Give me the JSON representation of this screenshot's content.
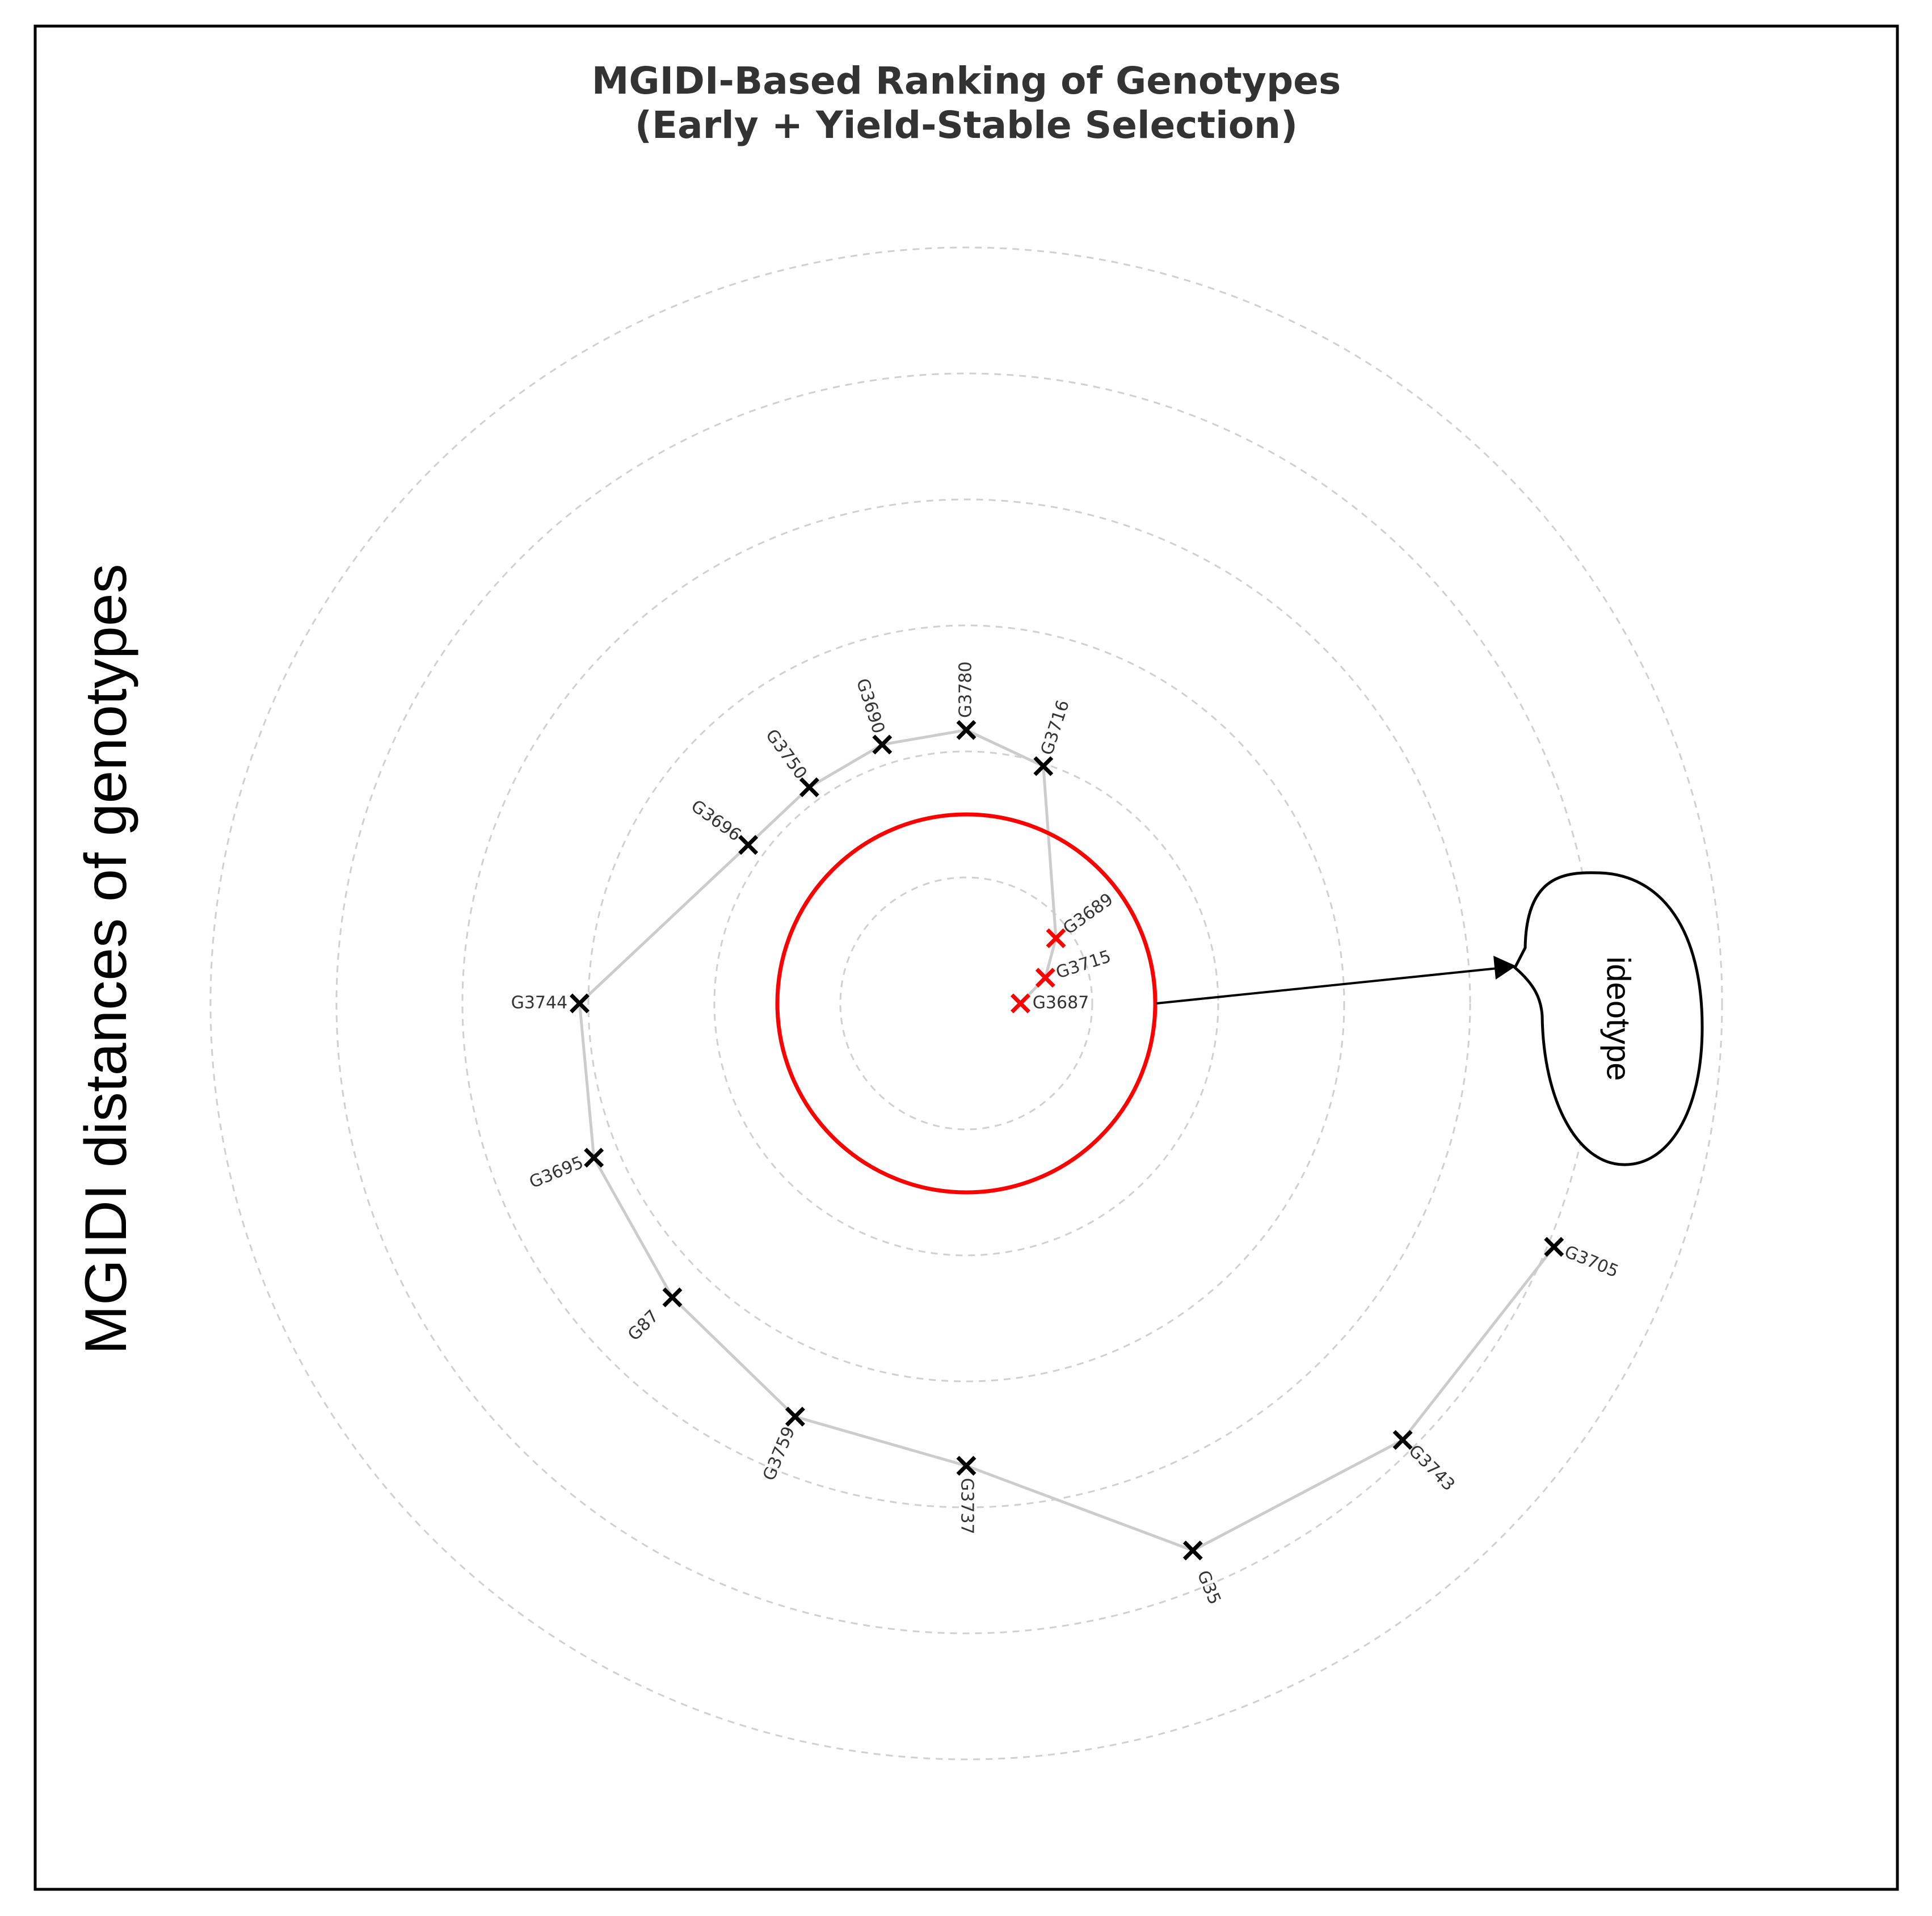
{
  "chart_data": {
    "type": "scatter",
    "subtype": "radar",
    "title": "MGIDI-Based Ranking of Genotypes\n(Early + Yield-Stable Selection)",
    "ylabel": "MGIDI distances of genotypes",
    "annotation": "ideotype",
    "grid": true,
    "radial_gridlines": [
      1,
      2,
      3,
      4,
      5,
      6
    ],
    "selection_cutoff": 1.5,
    "colors": {
      "selected": "#ff0000",
      "not_selected": "#000000",
      "connector": "#cccccc",
      "grid": "#d0d0d0",
      "cutoff": "#ff0000"
    },
    "points": [
      {
        "genotype": "G3687",
        "angle_deg": 0,
        "distance": 0.43,
        "selected": true
      },
      {
        "genotype": "G3715",
        "angle_deg": 18,
        "distance": 0.66,
        "selected": true
      },
      {
        "genotype": "G3689",
        "angle_deg": 36,
        "distance": 0.88,
        "selected": true
      },
      {
        "genotype": "G3716",
        "angle_deg": 72,
        "distance": 1.98,
        "selected": false
      },
      {
        "genotype": "G3780",
        "angle_deg": 90,
        "distance": 2.17,
        "selected": false
      },
      {
        "genotype": "G3690",
        "angle_deg": 108,
        "distance": 2.16,
        "selected": false
      },
      {
        "genotype": "G3750",
        "angle_deg": 126,
        "distance": 2.12,
        "selected": false
      },
      {
        "genotype": "G3696",
        "angle_deg": 144,
        "distance": 2.14,
        "selected": false
      },
      {
        "genotype": "G3744",
        "angle_deg": 180,
        "distance": 3.07,
        "selected": false
      },
      {
        "genotype": "G3695",
        "angle_deg": 202.5,
        "distance": 3.2,
        "selected": false
      },
      {
        "genotype": "G87",
        "angle_deg": 225,
        "distance": 3.3,
        "selected": false
      },
      {
        "genotype": "G3759",
        "angle_deg": 247.5,
        "distance": 3.55,
        "selected": false
      },
      {
        "genotype": "G3737",
        "angle_deg": 270,
        "distance": 3.67,
        "selected": false
      },
      {
        "genotype": "G35",
        "angle_deg": 292.5,
        "distance": 4.7,
        "selected": false
      },
      {
        "genotype": "G3743",
        "angle_deg": 315,
        "distance": 4.9,
        "selected": false
      },
      {
        "genotype": "G3705",
        "angle_deg": 337.5,
        "distance": 5.05,
        "selected": false
      }
    ]
  }
}
